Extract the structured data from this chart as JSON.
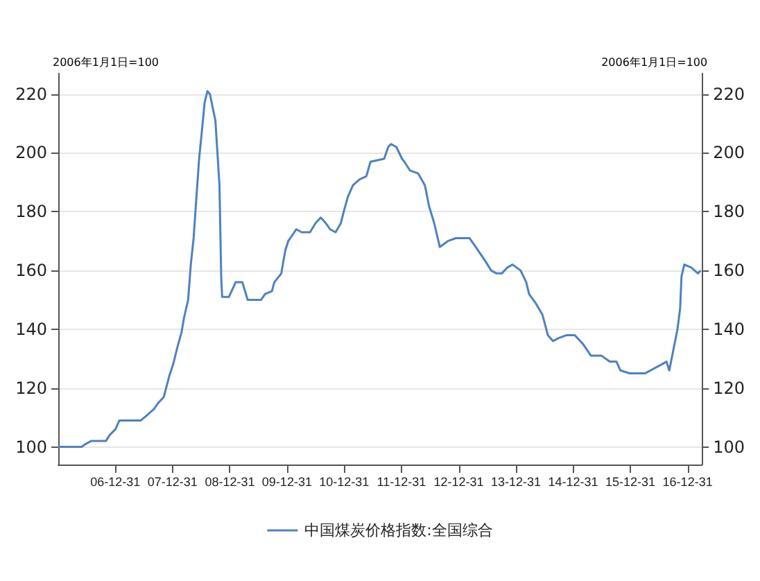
{
  "chart_data": {
    "type": "line",
    "ylabel": "2006年1月1日=100",
    "y2label": "2006年1月1日=100",
    "x": [
      "2006-01-01",
      "2006-05-30",
      "2006-06-25",
      "2006-07-30",
      "2006-11-01",
      "2006-11-25",
      "2007-01-01",
      "2007-01-26",
      "2007-06-12",
      "2007-07-27",
      "2007-09-06",
      "2007-10-02",
      "2007-11-06",
      "2007-12-10",
      "2008-01-04",
      "2008-02-01",
      "2008-02-27",
      "2008-03-14",
      "2008-04-09",
      "2008-04-26",
      "2008-05-14",
      "2008-06-01",
      "2008-06-18",
      "2008-07-05",
      "2008-07-23",
      "2008-08-10",
      "2008-08-26",
      "2008-09-30",
      "2008-10-26",
      "2008-11-06",
      "2008-11-12",
      "2008-12-25",
      "2009-01-20",
      "2009-02-06",
      "2009-03-21",
      "2009-04-07",
      "2009-04-24",
      "2009-07-18",
      "2009-08-13",
      "2009-09-26",
      "2009-10-11",
      "2009-11-25",
      "2009-12-04",
      "2009-12-21",
      "2010-01-08",
      "2010-02-03",
      "2010-02-28",
      "2010-04-04",
      "2010-05-27",
      "2010-06-30",
      "2010-08-03",
      "2010-09-06",
      "2010-10-02",
      "2010-11-06",
      "2010-12-09",
      "2010-12-28",
      "2011-01-23",
      "2011-02-25",
      "2011-04-09",
      "2011-05-21",
      "2011-06-17",
      "2011-09-12",
      "2011-10-08",
      "2011-10-26",
      "2011-11-29",
      "2012-01-04",
      "2012-01-19",
      "2012-02-24",
      "2012-04-16",
      "2012-05-29",
      "2012-06-24",
      "2012-07-28",
      "2012-09-01",
      "2012-10-23",
      "2012-12-13",
      "2013-03-10",
      "2013-05-01",
      "2013-06-21",
      "2013-07-26",
      "2013-08-29",
      "2013-10-02",
      "2013-11-06",
      "2013-12-09",
      "2014-01-30",
      "2014-03-07",
      "2014-03-25",
      "2014-05-05",
      "2014-06-18",
      "2014-07-23",
      "2014-08-25",
      "2014-09-30",
      "2014-11-20",
      "2015-01-11",
      "2015-03-04",
      "2015-04-24",
      "2015-07-01",
      "2015-08-22",
      "2015-10-04",
      "2015-10-29",
      "2015-12-27",
      "2016-04-01",
      "2016-05-08",
      "2016-07-16",
      "2016-08-18",
      "2016-09-05",
      "2016-10-01",
      "2016-10-27",
      "2016-11-13",
      "2016-11-22",
      "2016-12-10",
      "2017-01-23",
      "2017-03-07",
      "2017-03-24"
    ],
    "series": [
      {
        "name": "中国煤炭价格指数:全国综合",
        "color": "#4f81bd",
        "values": [
          100,
          100,
          101,
          102,
          102,
          104,
          106,
          109,
          109,
          111,
          113,
          115,
          117,
          124,
          128,
          134,
          139,
          144,
          150,
          162,
          171,
          185,
          198,
          207,
          217,
          221,
          220,
          211,
          189,
          158,
          151,
          151,
          154,
          156,
          156,
          153,
          150,
          150,
          152,
          153,
          156,
          159,
          162,
          167,
          170,
          172,
          174,
          173,
          173,
          176,
          178,
          176,
          174,
          173,
          176,
          180,
          185,
          189,
          191,
          192,
          197,
          198,
          202,
          203,
          202,
          198,
          197,
          194,
          193,
          189,
          182,
          176,
          168,
          170,
          171,
          171,
          167,
          163,
          160,
          159,
          159,
          161,
          162,
          160,
          156,
          152,
          149,
          145,
          138,
          136,
          137,
          138,
          138,
          135,
          131,
          131,
          129,
          129,
          126,
          125,
          125,
          126,
          128,
          129,
          126,
          133,
          140,
          147,
          158,
          162,
          161,
          159,
          160
        ]
      }
    ],
    "xlim": [
      "2006-01-01",
      "2017-04-01"
    ],
    "xticks": [
      {
        "value": "2006-12-31",
        "label": "06-12-31"
      },
      {
        "value": "2007-12-31",
        "label": "07-12-31"
      },
      {
        "value": "2008-12-31",
        "label": "08-12-31"
      },
      {
        "value": "2009-12-31",
        "label": "09-12-31"
      },
      {
        "value": "2010-12-31",
        "label": "10-12-31"
      },
      {
        "value": "2011-12-31",
        "label": "11-12-31"
      },
      {
        "value": "2012-12-31",
        "label": "12-12-31"
      },
      {
        "value": "2013-12-31",
        "label": "13-12-31"
      },
      {
        "value": "2014-12-31",
        "label": "14-12-31"
      },
      {
        "value": "2015-12-31",
        "label": "15-12-31"
      },
      {
        "value": "2016-12-31",
        "label": "16-12-31"
      }
    ],
    "ylim": [
      94,
      227
    ],
    "yticks": [
      100,
      120,
      140,
      160,
      180,
      200,
      220
    ],
    "y2lim": [
      94,
      227
    ],
    "y2ticks": [
      100,
      120,
      140,
      160,
      180,
      200,
      220
    ],
    "grid": "y",
    "legend": "bottom",
    "marker": "none",
    "line_style": "solid"
  }
}
